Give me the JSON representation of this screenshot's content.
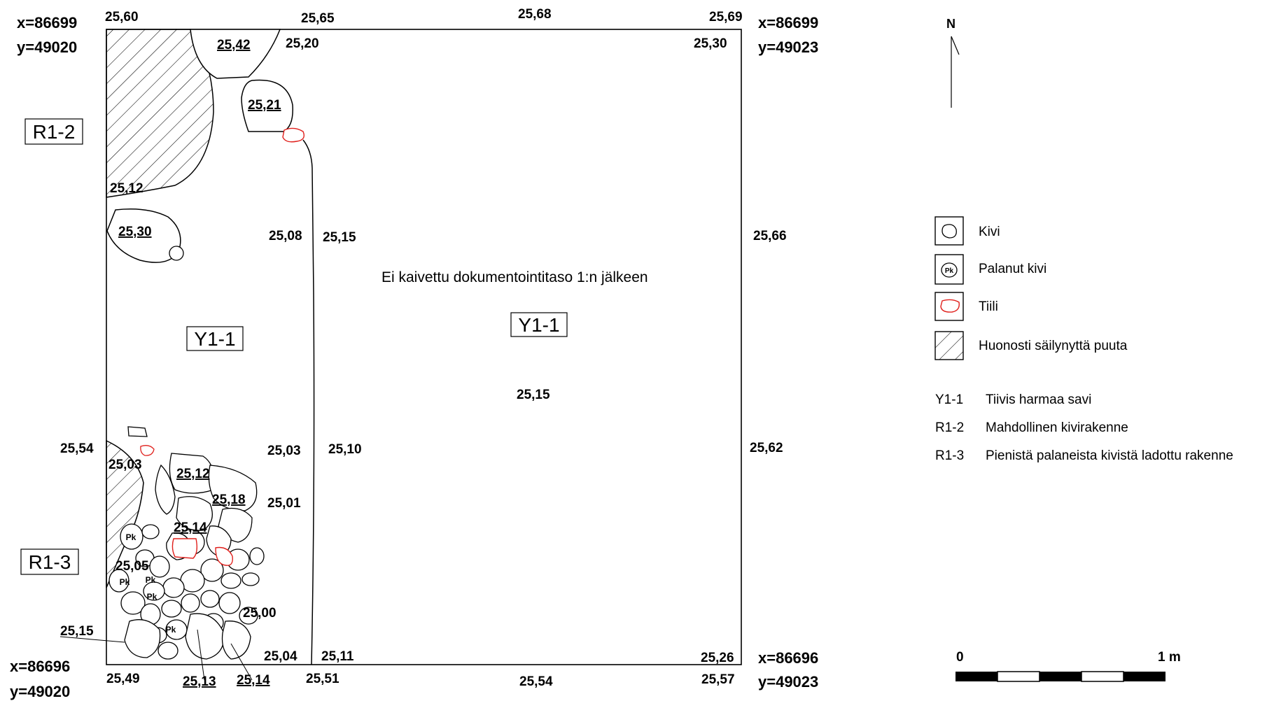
{
  "corners": {
    "nw": {
      "x": "x=86699",
      "y": "y=49020"
    },
    "ne": {
      "x": "x=86699",
      "y": "y=49023"
    },
    "sw": {
      "x": "x=86696",
      "y": "y=49020"
    },
    "se": {
      "x": "x=86696",
      "y": "y=49023"
    }
  },
  "elevations": {
    "top_left": "25,60",
    "top_mid_left": "25,65",
    "top_mid": "25,68",
    "top_right": "25,69",
    "stone_a": "25,42",
    "inner_a": "25,20",
    "inner_right_top": "25,30",
    "stone_b": "25,21",
    "wood_edge": "25,12",
    "stone_c": "25,30",
    "mid_left_a": "25,08",
    "mid_left_b": "25,15",
    "right_mid": "25,66",
    "center": "25,15",
    "left_edge": "25,54",
    "r13_a": "25,03",
    "r13_b": "25,03",
    "r13_c": "25,10",
    "right_low": "25,62",
    "stone_d": "25,12",
    "stone_e": "25,18",
    "r13_d": "25,01",
    "stone_f": "25,14",
    "r13_e": "25,05",
    "r13_f": "25,00",
    "left_low": "25,15",
    "bottom_a": "25,04",
    "bottom_b": "25,11",
    "bottom_c": "25,26",
    "bottom_left": "25,49",
    "stone_g": "25,13",
    "stone_h": "25,14",
    "bottom_mid_left": "25,51",
    "bottom_mid": "25,54",
    "bottom_right": "25,57"
  },
  "note": "Ei kaivettu dokumentointitaso 1:n jälkeen",
  "labels": {
    "y1_left": "Y1-1",
    "y1_right": "Y1-1",
    "r12": "R1-2",
    "r13": "R1-3",
    "pk": "Pk"
  },
  "north": "N",
  "legend": {
    "symbols": [
      {
        "icon": "stone-icon",
        "label": "Kivi"
      },
      {
        "icon": "burnt-stone-icon",
        "label": "Palanut kivi"
      },
      {
        "icon": "brick-icon",
        "label": "Tiili"
      },
      {
        "icon": "wood-hatch-icon",
        "label": "Huonosti säilynyttä puuta"
      }
    ],
    "codes": [
      {
        "code": "Y1-1",
        "desc": "Tiivis harmaa savi"
      },
      {
        "code": "R1-2",
        "desc": "Mahdollinen kivirakenne"
      },
      {
        "code": "R1-3",
        "desc": "Pienistä palaneista kivistä ladottu rakenne"
      }
    ]
  },
  "scale": {
    "start": "0",
    "end": "1 m"
  },
  "colors": {
    "brick": "#e0201c",
    "line": "#000000"
  }
}
